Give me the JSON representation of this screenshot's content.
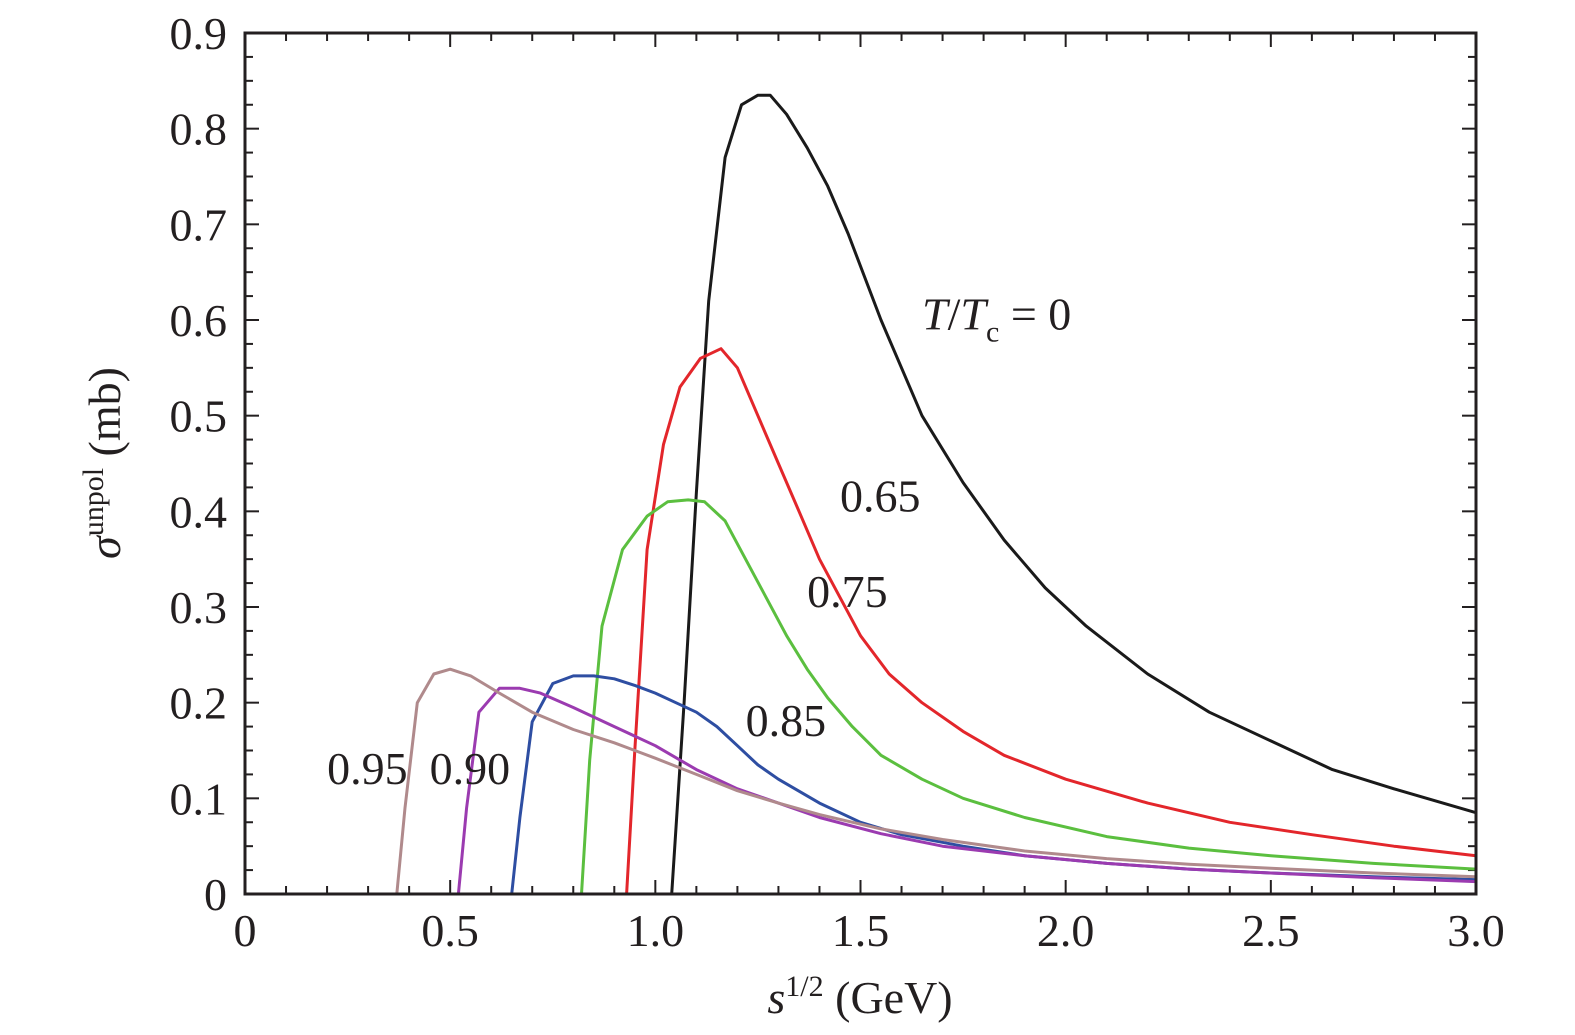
{
  "chart_data": {
    "type": "line",
    "xlabel": {
      "base": "s",
      "sup": "1/2",
      "unit": " (GeV)"
    },
    "ylabel": {
      "base": "σ",
      "sup": "unpol",
      "unit": " (mb)"
    },
    "xlim": [
      0,
      3.0
    ],
    "ylim": [
      0,
      0.9
    ],
    "xticks": [
      0,
      0.5,
      1.0,
      1.5,
      2.0,
      2.5,
      3.0
    ],
    "xtick_labels": [
      "0",
      "0.5",
      "1.0",
      "1.5",
      "2.0",
      "2.5",
      "3.0"
    ],
    "yticks": [
      0,
      0.1,
      0.2,
      0.3,
      0.4,
      0.5,
      0.6,
      0.7,
      0.8,
      0.9
    ],
    "ytick_labels": [
      "0",
      "0.1",
      "0.2",
      "0.3",
      "0.4",
      "0.5",
      "0.6",
      "0.7",
      "0.8",
      "0.9"
    ],
    "grid": false,
    "series": [
      {
        "name": "T/Tc = 0",
        "color": "#1a1a1a",
        "label": {
          "T1": "T",
          "slash": "/",
          "T2": "T",
          "sub": "c",
          "eq": " = 0"
        },
        "label_at": [
          1.65,
          0.59
        ],
        "x": [
          1.04,
          1.07,
          1.1,
          1.13,
          1.17,
          1.21,
          1.25,
          1.28,
          1.32,
          1.37,
          1.42,
          1.47,
          1.55,
          1.65,
          1.75,
          1.85,
          1.95,
          2.05,
          2.2,
          2.35,
          2.5,
          2.65,
          2.8,
          3.0
        ],
        "y": [
          0.0,
          0.2,
          0.42,
          0.62,
          0.77,
          0.825,
          0.835,
          0.835,
          0.815,
          0.78,
          0.74,
          0.69,
          0.6,
          0.5,
          0.43,
          0.37,
          0.32,
          0.28,
          0.23,
          0.19,
          0.16,
          0.13,
          0.11,
          0.085
        ]
      },
      {
        "name": "0.65",
        "color": "#e3262b",
        "label": "0.65",
        "label_at": [
          1.45,
          0.4
        ],
        "x": [
          0.93,
          0.95,
          0.98,
          1.02,
          1.06,
          1.11,
          1.16,
          1.2,
          1.25,
          1.3,
          1.35,
          1.4,
          1.45,
          1.5,
          1.57,
          1.65,
          1.75,
          1.85,
          2.0,
          2.2,
          2.4,
          2.6,
          2.8,
          3.0
        ],
        "y": [
          0.0,
          0.15,
          0.36,
          0.47,
          0.53,
          0.56,
          0.57,
          0.55,
          0.5,
          0.45,
          0.4,
          0.35,
          0.31,
          0.27,
          0.23,
          0.2,
          0.17,
          0.145,
          0.12,
          0.095,
          0.075,
          0.062,
          0.05,
          0.04
        ]
      },
      {
        "name": "0.75",
        "color": "#5bbf3f",
        "label": "0.75",
        "label_at": [
          1.37,
          0.3
        ],
        "x": [
          0.82,
          0.84,
          0.87,
          0.92,
          0.98,
          1.03,
          1.08,
          1.12,
          1.17,
          1.22,
          1.27,
          1.32,
          1.37,
          1.42,
          1.48,
          1.55,
          1.65,
          1.75,
          1.9,
          2.1,
          2.3,
          2.5,
          2.75,
          3.0
        ],
        "y": [
          0.0,
          0.14,
          0.28,
          0.36,
          0.395,
          0.41,
          0.412,
          0.41,
          0.39,
          0.35,
          0.31,
          0.27,
          0.235,
          0.205,
          0.175,
          0.145,
          0.12,
          0.1,
          0.08,
          0.06,
          0.048,
          0.04,
          0.032,
          0.026
        ]
      },
      {
        "name": "0.85",
        "color": "#2e4ea2",
        "label": "0.85",
        "label_at": [
          1.22,
          0.165
        ],
        "x": [
          0.65,
          0.67,
          0.7,
          0.75,
          0.8,
          0.85,
          0.9,
          0.95,
          1.0,
          1.05,
          1.1,
          1.15,
          1.2,
          1.25,
          1.3,
          1.4,
          1.5,
          1.6,
          1.75,
          1.9,
          2.1,
          2.3,
          2.5,
          2.75,
          3.0
        ],
        "y": [
          0.0,
          0.08,
          0.18,
          0.22,
          0.228,
          0.228,
          0.225,
          0.218,
          0.21,
          0.2,
          0.19,
          0.175,
          0.155,
          0.135,
          0.12,
          0.095,
          0.075,
          0.062,
          0.05,
          0.04,
          0.032,
          0.026,
          0.022,
          0.018,
          0.015
        ]
      },
      {
        "name": "0.90",
        "color": "#9b3bb0",
        "label": "0.90",
        "label_at": [
          0.45,
          0.115
        ],
        "x": [
          0.52,
          0.54,
          0.57,
          0.62,
          0.67,
          0.72,
          0.8,
          0.9,
          1.0,
          1.1,
          1.2,
          1.3,
          1.4,
          1.55,
          1.7,
          1.9,
          2.1,
          2.3,
          2.5,
          2.75,
          3.0
        ],
        "y": [
          0.0,
          0.09,
          0.19,
          0.215,
          0.215,
          0.21,
          0.195,
          0.175,
          0.155,
          0.13,
          0.11,
          0.095,
          0.08,
          0.063,
          0.05,
          0.04,
          0.032,
          0.026,
          0.022,
          0.017,
          0.013
        ]
      },
      {
        "name": "0.95",
        "color": "#b08a8c",
        "label": "0.95",
        "label_at": [
          0.2,
          0.115
        ],
        "x": [
          0.37,
          0.39,
          0.42,
          0.46,
          0.5,
          0.55,
          0.62,
          0.7,
          0.8,
          0.9,
          1.0,
          1.1,
          1.2,
          1.3,
          1.4,
          1.55,
          1.7,
          1.9,
          2.1,
          2.3,
          2.5,
          2.75,
          3.0
        ],
        "y": [
          0.0,
          0.09,
          0.2,
          0.23,
          0.235,
          0.228,
          0.21,
          0.19,
          0.172,
          0.158,
          0.142,
          0.125,
          0.108,
          0.095,
          0.083,
          0.068,
          0.057,
          0.045,
          0.037,
          0.031,
          0.027,
          0.022,
          0.018
        ]
      }
    ]
  }
}
